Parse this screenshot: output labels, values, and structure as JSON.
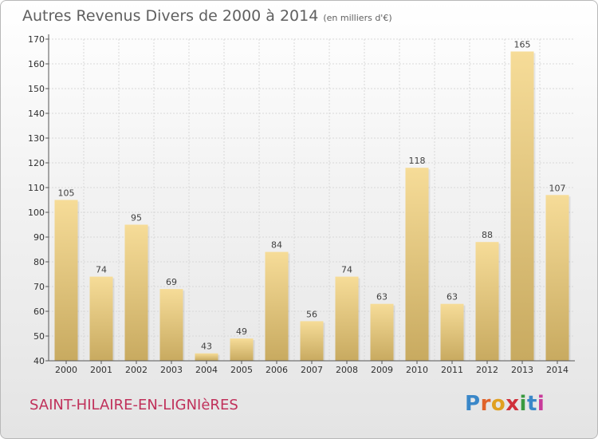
{
  "header": {
    "title": "Autres Revenus Divers de 2000 à 2014",
    "unit": "(en milliers d'€)"
  },
  "footer": {
    "city": "SAINT-HILAIRE-EN-LIGNIèRES",
    "logo": "Proxiti",
    "logo_colors": [
      "#3a87c8",
      "#e0632a",
      "#e0a020",
      "#d0303a",
      "#3a9a40",
      "#3a87c8",
      "#c83a9a"
    ]
  },
  "colors": {
    "bar_light": "#f6dc98",
    "bar_dark": "#c8aa60",
    "city": "#c0305a",
    "title": "#606060"
  },
  "chart_data": {
    "type": "bar",
    "title": "Autres Revenus Divers de 2000 à 2014",
    "subtitle": "(en milliers d'€)",
    "xlabel": "",
    "ylabel": "",
    "categories": [
      "2000",
      "2001",
      "2002",
      "2003",
      "2004",
      "2005",
      "2006",
      "2007",
      "2008",
      "2009",
      "2010",
      "2011",
      "2012",
      "2013",
      "2014"
    ],
    "values": [
      105,
      74,
      95,
      69,
      43,
      49,
      84,
      56,
      74,
      63,
      118,
      63,
      88,
      165,
      107
    ],
    "ylim": [
      40,
      170
    ],
    "yticks": [
      40,
      50,
      60,
      70,
      80,
      90,
      100,
      110,
      120,
      130,
      140,
      150,
      160,
      170
    ],
    "grid": true,
    "legend": "none"
  }
}
